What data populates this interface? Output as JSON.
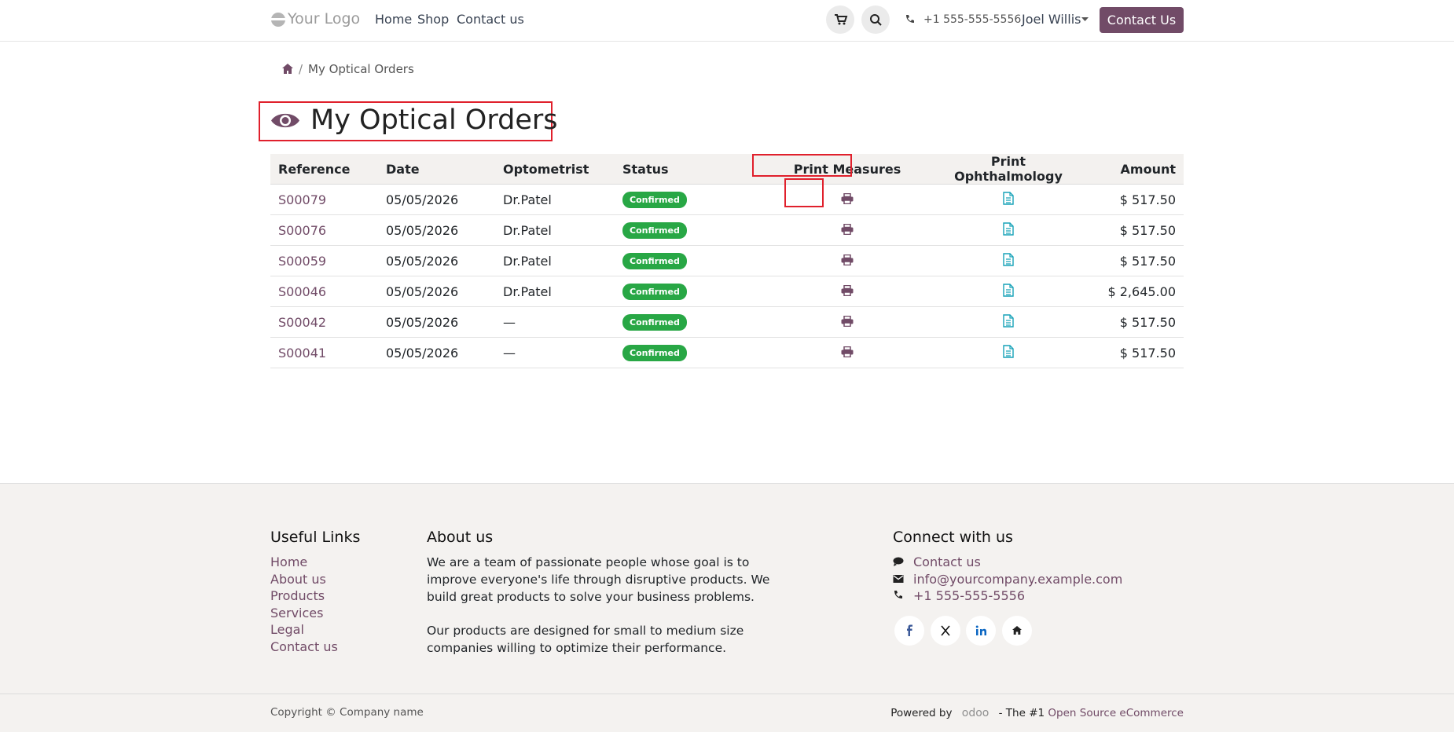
{
  "header": {
    "logo": "Your Logo",
    "nav": [
      "Home",
      "Shop",
      "Contact us"
    ],
    "phone": "+1 555-555-5556",
    "user": "Joel Willis",
    "cta": "Contact Us"
  },
  "breadcrumb": {
    "current": "My Optical Orders"
  },
  "page_title": "My Optical Orders",
  "table": {
    "columns": [
      "Reference",
      "Date",
      "Optometrist",
      "Status",
      "Print Measures",
      "Print Ophthalmology",
      "Amount"
    ],
    "rows": [
      [
        "S00079",
        "05/05/2026",
        "Dr.Patel",
        "Confirmed",
        "$ 517.50"
      ],
      [
        "S00076",
        "05/05/2026",
        "Dr.Patel",
        "Confirmed",
        "$ 517.50"
      ],
      [
        "S00059",
        "05/05/2026",
        "Dr.Patel",
        "Confirmed",
        "$ 517.50"
      ],
      [
        "S00046",
        "05/05/2026",
        "Dr.Patel",
        "Confirmed",
        "$ 2,645.00"
      ],
      [
        "S00042",
        "05/05/2026",
        "—",
        "Confirmed",
        "$ 517.50"
      ],
      [
        "S00041",
        "05/05/2026",
        "—",
        "Confirmed",
        "$ 517.50"
      ]
    ]
  },
  "footer": {
    "useful_links": {
      "title": "Useful Links",
      "links": [
        "Home",
        "About us",
        "Products",
        "Services",
        "Legal",
        "Contact us"
      ]
    },
    "about": {
      "title": "About us",
      "paragraphs": [
        "We are a team of passionate people whose goal is to improve everyone's life through disruptive products. We build great products to solve your business problems.",
        "Our products are designed for small to medium size companies willing to optimize their performance."
      ]
    },
    "connect": {
      "title": "Connect with us",
      "items": [
        "Contact us",
        "info@yourcompany.example.com",
        "+1 555-555-5556"
      ]
    },
    "copyright": "Copyright © Company name",
    "powered_by": "Powered by",
    "brand": "odoo",
    "tagline_prefix": "- The #1",
    "tagline_link": "Open Source eCommerce"
  }
}
